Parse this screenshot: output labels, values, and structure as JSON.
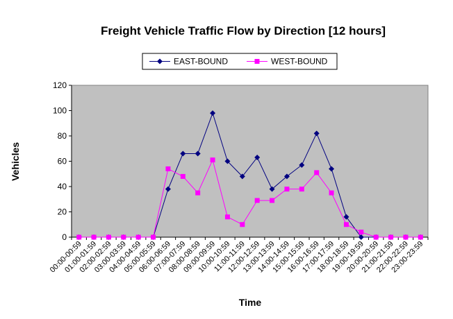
{
  "chart_data": {
    "type": "line",
    "title": "Freight Vehicle Traffic Flow by Direction [12 hours]",
    "x_label": "Time",
    "y_label": "Vehicles",
    "categories": [
      "00:00-00:59",
      "01:00-01:59",
      "02:00-02:59",
      "03:00-03:59",
      "04:00-04:59",
      "05:00-05:59",
      "06:00-06:59",
      "07:00-07:59",
      "08:00-08:59",
      "09:00-09:59",
      "10:00-10:59",
      "11:00-11:59",
      "12:00-12:59",
      "13:00-13:59",
      "14:00-14:59",
      "15:00-15:59",
      "16:00-16:59",
      "17:00-17:59",
      "18:00-18:59",
      "19:00-19:59",
      "20:00-20:59",
      "21:00-21:59",
      "22:00-22:59",
      "23:00-23:59"
    ],
    "series": [
      {
        "name": "EAST-BOUND",
        "color": "#000080",
        "marker": "diamond",
        "values": [
          0,
          0,
          0,
          0,
          0,
          0,
          38,
          66,
          66,
          98,
          60,
          48,
          63,
          38,
          48,
          57,
          82,
          54,
          16,
          0,
          0,
          0,
          0,
          0
        ]
      },
      {
        "name": "WEST-BOUND",
        "color": "#FF00FF",
        "marker": "square",
        "values": [
          0,
          0,
          0,
          0,
          0,
          0,
          54,
          48,
          35,
          61,
          16,
          10,
          29,
          29,
          38,
          38,
          51,
          35,
          10,
          4,
          0,
          0,
          0,
          0
        ]
      }
    ],
    "ylim": [
      0,
      120
    ],
    "yticks": [
      0,
      20,
      40,
      60,
      80,
      100,
      120
    ],
    "legend": "top",
    "plot_background": "#C0C0C0"
  }
}
